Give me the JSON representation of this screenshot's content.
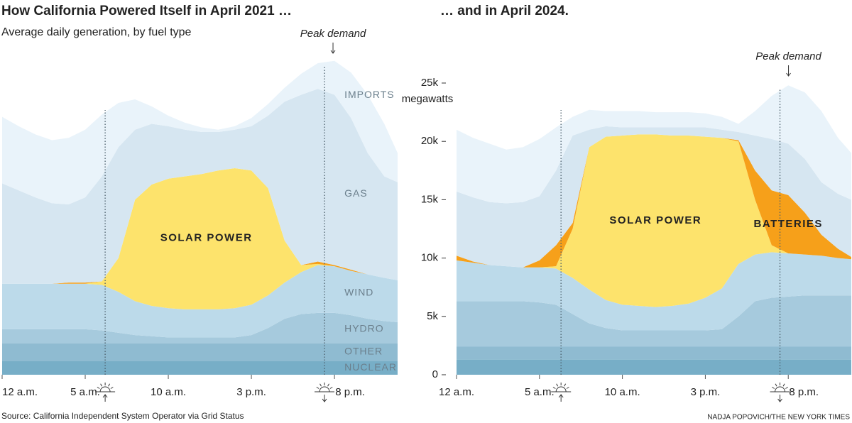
{
  "chart_data": [
    {
      "type": "stacked_area",
      "title": "How California Powered Itself in April 2021 …",
      "subtitle": "Average daily generation, by fuel type",
      "x": [
        0,
        1,
        2,
        3,
        4,
        5,
        6,
        7,
        8,
        9,
        10,
        11,
        12,
        13,
        14,
        15,
        16,
        17,
        18,
        19,
        20,
        21,
        22,
        23,
        23.8
      ],
      "xlim": [
        0,
        23.8
      ],
      "xticks": [
        {
          "value": 0,
          "label": "12 a.m."
        },
        {
          "value": 5,
          "label": "5 a.m."
        },
        {
          "value": 10,
          "label": "10 a.m."
        },
        {
          "value": 15,
          "label": "3 p.m."
        },
        {
          "value": 20,
          "label": "8 p.m."
        }
      ],
      "ylim": [
        0,
        30000
      ],
      "sunrise": 6.2,
      "sunset": 19.4,
      "annotation": "Peak demand",
      "series": [
        {
          "name": "NUCLEAR",
          "color": "#77aec7",
          "values": [
            1200,
            1200,
            1200,
            1200,
            1200,
            1200,
            1200,
            1200,
            1200,
            1200,
            1200,
            1200,
            1200,
            1200,
            1200,
            1200,
            1200,
            1200,
            1200,
            1200,
            1200,
            1200,
            1200,
            1200,
            1200
          ]
        },
        {
          "name": "OTHER",
          "color": "#8fbbd1",
          "values": [
            1500,
            1500,
            1500,
            1500,
            1500,
            1500,
            1500,
            1500,
            1500,
            1500,
            1500,
            1500,
            1500,
            1500,
            1500,
            1500,
            1500,
            1500,
            1500,
            1500,
            1500,
            1500,
            1500,
            1500,
            1500
          ]
        },
        {
          "name": "HYDRO",
          "color": "#a6cadd",
          "values": [
            1200,
            1200,
            1200,
            1200,
            1200,
            1200,
            1100,
            900,
            700,
            600,
            500,
            500,
            500,
            500,
            500,
            700,
            1300,
            2100,
            2500,
            2600,
            2600,
            2400,
            2100,
            1900,
            1800
          ]
        },
        {
          "name": "WIND",
          "color": "#bcdaea",
          "values": [
            3900,
            3900,
            3900,
            3900,
            3900,
            3900,
            3900,
            3500,
            2900,
            2600,
            2500,
            2400,
            2400,
            2400,
            2500,
            2600,
            2800,
            3100,
            3600,
            4100,
            4000,
            3800,
            3800,
            3700,
            3600
          ]
        },
        {
          "name": "SOLAR POWER",
          "color": "#fde36c",
          "values": [
            0,
            0,
            0,
            0,
            0,
            0,
            300,
            2900,
            8700,
            10400,
            11100,
            11400,
            11600,
            11900,
            12000,
            11500,
            9200,
            3600,
            600,
            100,
            0,
            0,
            0,
            0,
            0
          ]
        },
        {
          "color": "#f6a01a",
          "values": [
            0,
            0,
            0,
            0,
            100,
            100,
            0,
            0,
            0,
            0,
            0,
            0,
            0,
            0,
            0,
            0,
            0,
            0,
            0,
            200,
            100,
            100,
            0,
            0,
            0
          ]
        },
        {
          "name": "GAS",
          "color": "#d6e6f1",
          "values": [
            8600,
            8000,
            7400,
            6900,
            6700,
            7300,
            9000,
            9500,
            6000,
            5200,
            4500,
            4000,
            3600,
            3300,
            3300,
            3800,
            6200,
            11900,
            14600,
            14800,
            14600,
            13000,
            10400,
            8700,
            8400
          ]
        },
        {
          "name": "IMPORTS",
          "color": "#e9f3fa",
          "values": [
            5700,
            5500,
            5400,
            5400,
            5700,
            5800,
            5300,
            3800,
            2600,
            1500,
            900,
            600,
            400,
            200,
            300,
            700,
            1000,
            1200,
            1800,
            2200,
            2900,
            3900,
            5000,
            4500,
            2500
          ]
        }
      ]
    },
    {
      "type": "stacked_area",
      "title": "… and in April 2024.",
      "x": [
        0,
        1,
        2,
        3,
        4,
        5,
        6,
        7,
        8,
        9,
        10,
        11,
        12,
        13,
        14,
        15,
        16,
        17,
        18,
        19,
        20,
        21,
        22,
        23,
        23.8
      ],
      "xlim": [
        0,
        23.8
      ],
      "xticks": [
        {
          "value": 0,
          "label": "12 a.m."
        },
        {
          "value": 5,
          "label": "5 a.m."
        },
        {
          "value": 10,
          "label": "10 a.m."
        },
        {
          "value": 15,
          "label": "3 p.m."
        },
        {
          "value": 20,
          "label": "8 p.m."
        }
      ],
      "ylim": [
        0,
        30000
      ],
      "yticks": [
        0,
        {
          "value": 5000,
          "label": "5k"
        },
        {
          "value": 10000,
          "label": "10k"
        },
        {
          "value": 15000,
          "label": "15k"
        },
        {
          "value": 20000,
          "label": "20k"
        },
        {
          "value": 25000,
          "label": "25k"
        }
      ],
      "y_label": "megawatts",
      "sunrise": 6.3,
      "sunset": 19.5,
      "annotation": "Peak demand",
      "series": [
        {
          "color": "#77aec7",
          "values": [
            1300,
            1300,
            1300,
            1300,
            1300,
            1300,
            1300,
            1300,
            1300,
            1300,
            1300,
            1300,
            1300,
            1300,
            1300,
            1300,
            1300,
            1300,
            1300,
            1300,
            1300,
            1300,
            1300,
            1300,
            1300
          ]
        },
        {
          "color": "#8fbbd1",
          "values": [
            1100,
            1100,
            1100,
            1100,
            1100,
            1100,
            1100,
            1100,
            1100,
            1100,
            1100,
            1100,
            1100,
            1100,
            1100,
            1100,
            1100,
            1100,
            1100,
            1100,
            1100,
            1100,
            1100,
            1100,
            1100
          ]
        },
        {
          "color": "#a6cadd",
          "values": [
            3900,
            3900,
            3900,
            3900,
            3900,
            3800,
            3600,
            2800,
            2000,
            1600,
            1400,
            1400,
            1400,
            1400,
            1400,
            1400,
            1500,
            2600,
            3900,
            4200,
            4300,
            4400,
            4400,
            4400,
            4400
          ]
        },
        {
          "color": "#bcdaea",
          "values": [
            3500,
            3300,
            3100,
            3000,
            2900,
            3000,
            3100,
            3100,
            2900,
            2400,
            2200,
            2100,
            2000,
            2100,
            2300,
            2800,
            3500,
            4500,
            4000,
            3900,
            3700,
            3500,
            3400,
            3200,
            3100
          ]
        },
        {
          "name": "SOLAR POWER",
          "color": "#fde36c",
          "values": [
            0,
            0,
            0,
            0,
            0,
            0,
            200,
            4200,
            12200,
            14000,
            14500,
            14700,
            14800,
            14600,
            14400,
            13800,
            12900,
            10500,
            4700,
            600,
            0,
            0,
            0,
            0,
            0
          ]
        },
        {
          "name": "BATTERIES",
          "color": "#f6a01a",
          "values": [
            400,
            100,
            0,
            0,
            0,
            600,
            1800,
            500,
            0,
            0,
            0,
            0,
            0,
            0,
            0,
            0,
            0,
            100,
            2500,
            4700,
            5000,
            3600,
            1800,
            800,
            200
          ]
        },
        {
          "color": "#d6e6f1",
          "values": [
            5500,
            5500,
            5400,
            5400,
            5600,
            5500,
            6400,
            7500,
            1500,
            900,
            700,
            600,
            600,
            700,
            700,
            800,
            700,
            700,
            3000,
            4400,
            4400,
            4600,
            4500,
            4700,
            4900
          ]
        },
        {
          "color": "#e9f3fa",
          "values": [
            5300,
            5100,
            5000,
            4600,
            4700,
            4900,
            3700,
            1600,
            1700,
            1300,
            1400,
            1400,
            1300,
            1300,
            1300,
            1200,
            1100,
            700,
            2100,
            3700,
            5000,
            5700,
            6100,
            4800,
            4000
          ]
        }
      ]
    }
  ],
  "source": "Source: California Independent System Operator via Grid Status",
  "credit": "NADJA POPOVICH/THE NEW YORK TIMES"
}
